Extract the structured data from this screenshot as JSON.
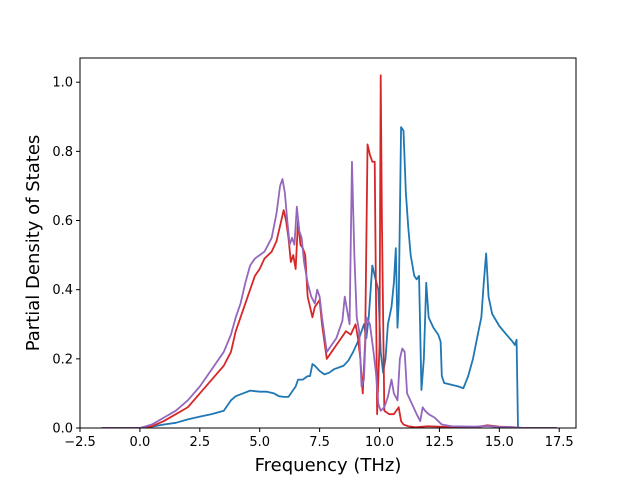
{
  "chart_data": {
    "type": "line",
    "title": "",
    "xlabel": "Frequency (THz)",
    "ylabel": "Partial Density of States",
    "xlim": [
      -2.5,
      18.2
    ],
    "ylim": [
      0.0,
      1.07
    ],
    "xticks": [
      -2.5,
      0.0,
      2.5,
      5.0,
      7.5,
      10.0,
      12.5,
      15.0,
      17.5
    ],
    "xtick_labels": [
      "−2.5",
      "0.0",
      "2.5",
      "5.0",
      "7.5",
      "10.0",
      "12.5",
      "15.0",
      "17.5"
    ],
    "yticks": [
      0.0,
      0.2,
      0.4,
      0.6,
      0.8,
      1.0
    ],
    "ytick_labels": [
      "0.0",
      "0.2",
      "0.4",
      "0.6",
      "0.8",
      "1.0"
    ],
    "grid": false,
    "legend": "none",
    "series": [
      {
        "color": "#1f77b4",
        "points": [
          [
            -1.6,
            0
          ],
          [
            0,
            0
          ],
          [
            0.5,
            0.004
          ],
          [
            1.0,
            0.01
          ],
          [
            1.5,
            0.015
          ],
          [
            2.0,
            0.025
          ],
          [
            2.5,
            0.033
          ],
          [
            3.0,
            0.04
          ],
          [
            3.5,
            0.05
          ],
          [
            3.8,
            0.08
          ],
          [
            4.0,
            0.092
          ],
          [
            4.3,
            0.1
          ],
          [
            4.6,
            0.108
          ],
          [
            5.0,
            0.105
          ],
          [
            5.3,
            0.105
          ],
          [
            5.6,
            0.1
          ],
          [
            5.8,
            0.092
          ],
          [
            6.0,
            0.09
          ],
          [
            6.2,
            0.09
          ],
          [
            6.5,
            0.12
          ],
          [
            6.6,
            0.14
          ],
          [
            6.8,
            0.14
          ],
          [
            7.0,
            0.15
          ],
          [
            7.1,
            0.15
          ],
          [
            7.2,
            0.185
          ],
          [
            7.3,
            0.18
          ],
          [
            7.5,
            0.165
          ],
          [
            7.7,
            0.155
          ],
          [
            7.9,
            0.16
          ],
          [
            8.1,
            0.17
          ],
          [
            8.3,
            0.175
          ],
          [
            8.5,
            0.18
          ],
          [
            8.7,
            0.195
          ],
          [
            8.9,
            0.22
          ],
          [
            9.1,
            0.25
          ],
          [
            9.2,
            0.27
          ],
          [
            9.35,
            0.3
          ],
          [
            9.45,
            0.26
          ],
          [
            9.55,
            0.32
          ],
          [
            9.7,
            0.47
          ],
          [
            9.8,
            0.44
          ],
          [
            9.95,
            0.4
          ],
          [
            10.05,
            0.22
          ],
          [
            10.15,
            0.16
          ],
          [
            10.25,
            0.2
          ],
          [
            10.35,
            0.3
          ],
          [
            10.5,
            0.35
          ],
          [
            10.6,
            0.42
          ],
          [
            10.68,
            0.52
          ],
          [
            10.75,
            0.29
          ],
          [
            10.8,
            0.36
          ],
          [
            10.9,
            0.87
          ],
          [
            11.0,
            0.86
          ],
          [
            11.1,
            0.68
          ],
          [
            11.2,
            0.58
          ],
          [
            11.3,
            0.5
          ],
          [
            11.45,
            0.44
          ],
          [
            11.55,
            0.43
          ],
          [
            11.65,
            0.44
          ],
          [
            11.75,
            0.11
          ],
          [
            11.85,
            0.2
          ],
          [
            11.95,
            0.42
          ],
          [
            12.05,
            0.32
          ],
          [
            12.25,
            0.29
          ],
          [
            12.45,
            0.27
          ],
          [
            12.55,
            0.25
          ],
          [
            12.6,
            0.15
          ],
          [
            12.7,
            0.13
          ],
          [
            13.0,
            0.125
          ],
          [
            13.3,
            0.12
          ],
          [
            13.5,
            0.115
          ],
          [
            13.7,
            0.15
          ],
          [
            13.9,
            0.2
          ],
          [
            14.1,
            0.27
          ],
          [
            14.25,
            0.32
          ],
          [
            14.35,
            0.42
          ],
          [
            14.45,
            0.505
          ],
          [
            14.55,
            0.38
          ],
          [
            14.7,
            0.33
          ],
          [
            15.0,
            0.295
          ],
          [
            15.3,
            0.27
          ],
          [
            15.55,
            0.25
          ],
          [
            15.65,
            0.24
          ],
          [
            15.72,
            0.255
          ],
          [
            15.78,
            0.0
          ],
          [
            17.4,
            0.0
          ]
        ]
      },
      {
        "color": "#d62728",
        "points": [
          [
            -1.6,
            0
          ],
          [
            0,
            0
          ],
          [
            0.5,
            0.005
          ],
          [
            1.0,
            0.02
          ],
          [
            1.5,
            0.04
          ],
          [
            2.0,
            0.06
          ],
          [
            2.5,
            0.1
          ],
          [
            3.0,
            0.14
          ],
          [
            3.5,
            0.18
          ],
          [
            3.8,
            0.22
          ],
          [
            4.0,
            0.28
          ],
          [
            4.2,
            0.32
          ],
          [
            4.5,
            0.38
          ],
          [
            4.8,
            0.44
          ],
          [
            5.0,
            0.46
          ],
          [
            5.2,
            0.49
          ],
          [
            5.5,
            0.51
          ],
          [
            5.7,
            0.54
          ],
          [
            5.9,
            0.6
          ],
          [
            6.0,
            0.63
          ],
          [
            6.1,
            0.6
          ],
          [
            6.2,
            0.55
          ],
          [
            6.3,
            0.48
          ],
          [
            6.4,
            0.5
          ],
          [
            6.5,
            0.46
          ],
          [
            6.6,
            0.6
          ],
          [
            6.7,
            0.53
          ],
          [
            6.8,
            0.52
          ],
          [
            6.9,
            0.5
          ],
          [
            7.0,
            0.38
          ],
          [
            7.2,
            0.32
          ],
          [
            7.3,
            0.35
          ],
          [
            7.5,
            0.37
          ],
          [
            7.6,
            0.3
          ],
          [
            7.8,
            0.2
          ],
          [
            8.0,
            0.22
          ],
          [
            8.2,
            0.24
          ],
          [
            8.4,
            0.26
          ],
          [
            8.6,
            0.28
          ],
          [
            8.8,
            0.27
          ],
          [
            9.0,
            0.3
          ],
          [
            9.1,
            0.26
          ],
          [
            9.2,
            0.2
          ],
          [
            9.3,
            0.1
          ],
          [
            9.4,
            0.25
          ],
          [
            9.5,
            0.82
          ],
          [
            9.6,
            0.79
          ],
          [
            9.7,
            0.77
          ],
          [
            9.8,
            0.77
          ],
          [
            9.9,
            0.04
          ],
          [
            10.0,
            0.24
          ],
          [
            10.05,
            1.02
          ],
          [
            10.1,
            0.6
          ],
          [
            10.2,
            0.05
          ],
          [
            10.4,
            0.04
          ],
          [
            10.6,
            0.04
          ],
          [
            10.8,
            0.06
          ],
          [
            10.9,
            0.02
          ],
          [
            11.0,
            0.01
          ],
          [
            11.2,
            0.005
          ],
          [
            11.5,
            0.002
          ],
          [
            12.0,
            0.005
          ],
          [
            12.5,
            0.004
          ],
          [
            13.0,
            0.002
          ],
          [
            14.0,
            0.002
          ],
          [
            14.5,
            0.008
          ],
          [
            15.0,
            0.004
          ],
          [
            15.6,
            0.002
          ],
          [
            16.0,
            0.0
          ],
          [
            17.4,
            0.0
          ]
        ]
      },
      {
        "color": "#9467bd",
        "points": [
          [
            -1.6,
            0
          ],
          [
            0,
            0
          ],
          [
            0.5,
            0.01
          ],
          [
            1.0,
            0.03
          ],
          [
            1.5,
            0.05
          ],
          [
            2.0,
            0.08
          ],
          [
            2.5,
            0.12
          ],
          [
            3.0,
            0.17
          ],
          [
            3.5,
            0.22
          ],
          [
            3.8,
            0.27
          ],
          [
            4.0,
            0.32
          ],
          [
            4.2,
            0.36
          ],
          [
            4.4,
            0.42
          ],
          [
            4.6,
            0.47
          ],
          [
            4.8,
            0.49
          ],
          [
            5.0,
            0.5
          ],
          [
            5.2,
            0.51
          ],
          [
            5.5,
            0.55
          ],
          [
            5.7,
            0.62
          ],
          [
            5.85,
            0.7
          ],
          [
            5.95,
            0.72
          ],
          [
            6.05,
            0.68
          ],
          [
            6.15,
            0.6
          ],
          [
            6.25,
            0.53
          ],
          [
            6.35,
            0.55
          ],
          [
            6.45,
            0.53
          ],
          [
            6.55,
            0.64
          ],
          [
            6.65,
            0.57
          ],
          [
            6.75,
            0.55
          ],
          [
            6.85,
            0.48
          ],
          [
            7.0,
            0.42
          ],
          [
            7.15,
            0.38
          ],
          [
            7.3,
            0.36
          ],
          [
            7.4,
            0.4
          ],
          [
            7.5,
            0.38
          ],
          [
            7.6,
            0.32
          ],
          [
            7.8,
            0.22
          ],
          [
            8.0,
            0.24
          ],
          [
            8.2,
            0.26
          ],
          [
            8.35,
            0.29
          ],
          [
            8.45,
            0.31
          ],
          [
            8.55,
            0.38
          ],
          [
            8.65,
            0.34
          ],
          [
            8.75,
            0.3
          ],
          [
            8.85,
            0.77
          ],
          [
            8.95,
            0.5
          ],
          [
            9.05,
            0.32
          ],
          [
            9.15,
            0.28
          ],
          [
            9.25,
            0.12
          ],
          [
            9.35,
            0.14
          ],
          [
            9.45,
            0.32
          ],
          [
            9.6,
            0.3
          ],
          [
            9.75,
            0.22
          ],
          [
            9.85,
            0.16
          ],
          [
            9.95,
            0.07
          ],
          [
            10.05,
            0.05
          ],
          [
            10.2,
            0.06
          ],
          [
            10.35,
            0.09
          ],
          [
            10.5,
            0.14
          ],
          [
            10.6,
            0.1
          ],
          [
            10.75,
            0.08
          ],
          [
            10.85,
            0.2
          ],
          [
            10.95,
            0.23
          ],
          [
            11.05,
            0.22
          ],
          [
            11.15,
            0.1
          ],
          [
            11.35,
            0.07
          ],
          [
            11.55,
            0.04
          ],
          [
            11.7,
            0.02
          ],
          [
            11.8,
            0.06
          ],
          [
            11.9,
            0.05
          ],
          [
            12.05,
            0.04
          ],
          [
            12.3,
            0.03
          ],
          [
            12.6,
            0.01
          ],
          [
            13.0,
            0.005
          ],
          [
            14.0,
            0.004
          ],
          [
            14.5,
            0.006
          ],
          [
            15.0,
            0.003
          ],
          [
            15.6,
            0.002
          ],
          [
            16.0,
            0.0
          ],
          [
            17.4,
            0.0
          ]
        ]
      }
    ]
  }
}
